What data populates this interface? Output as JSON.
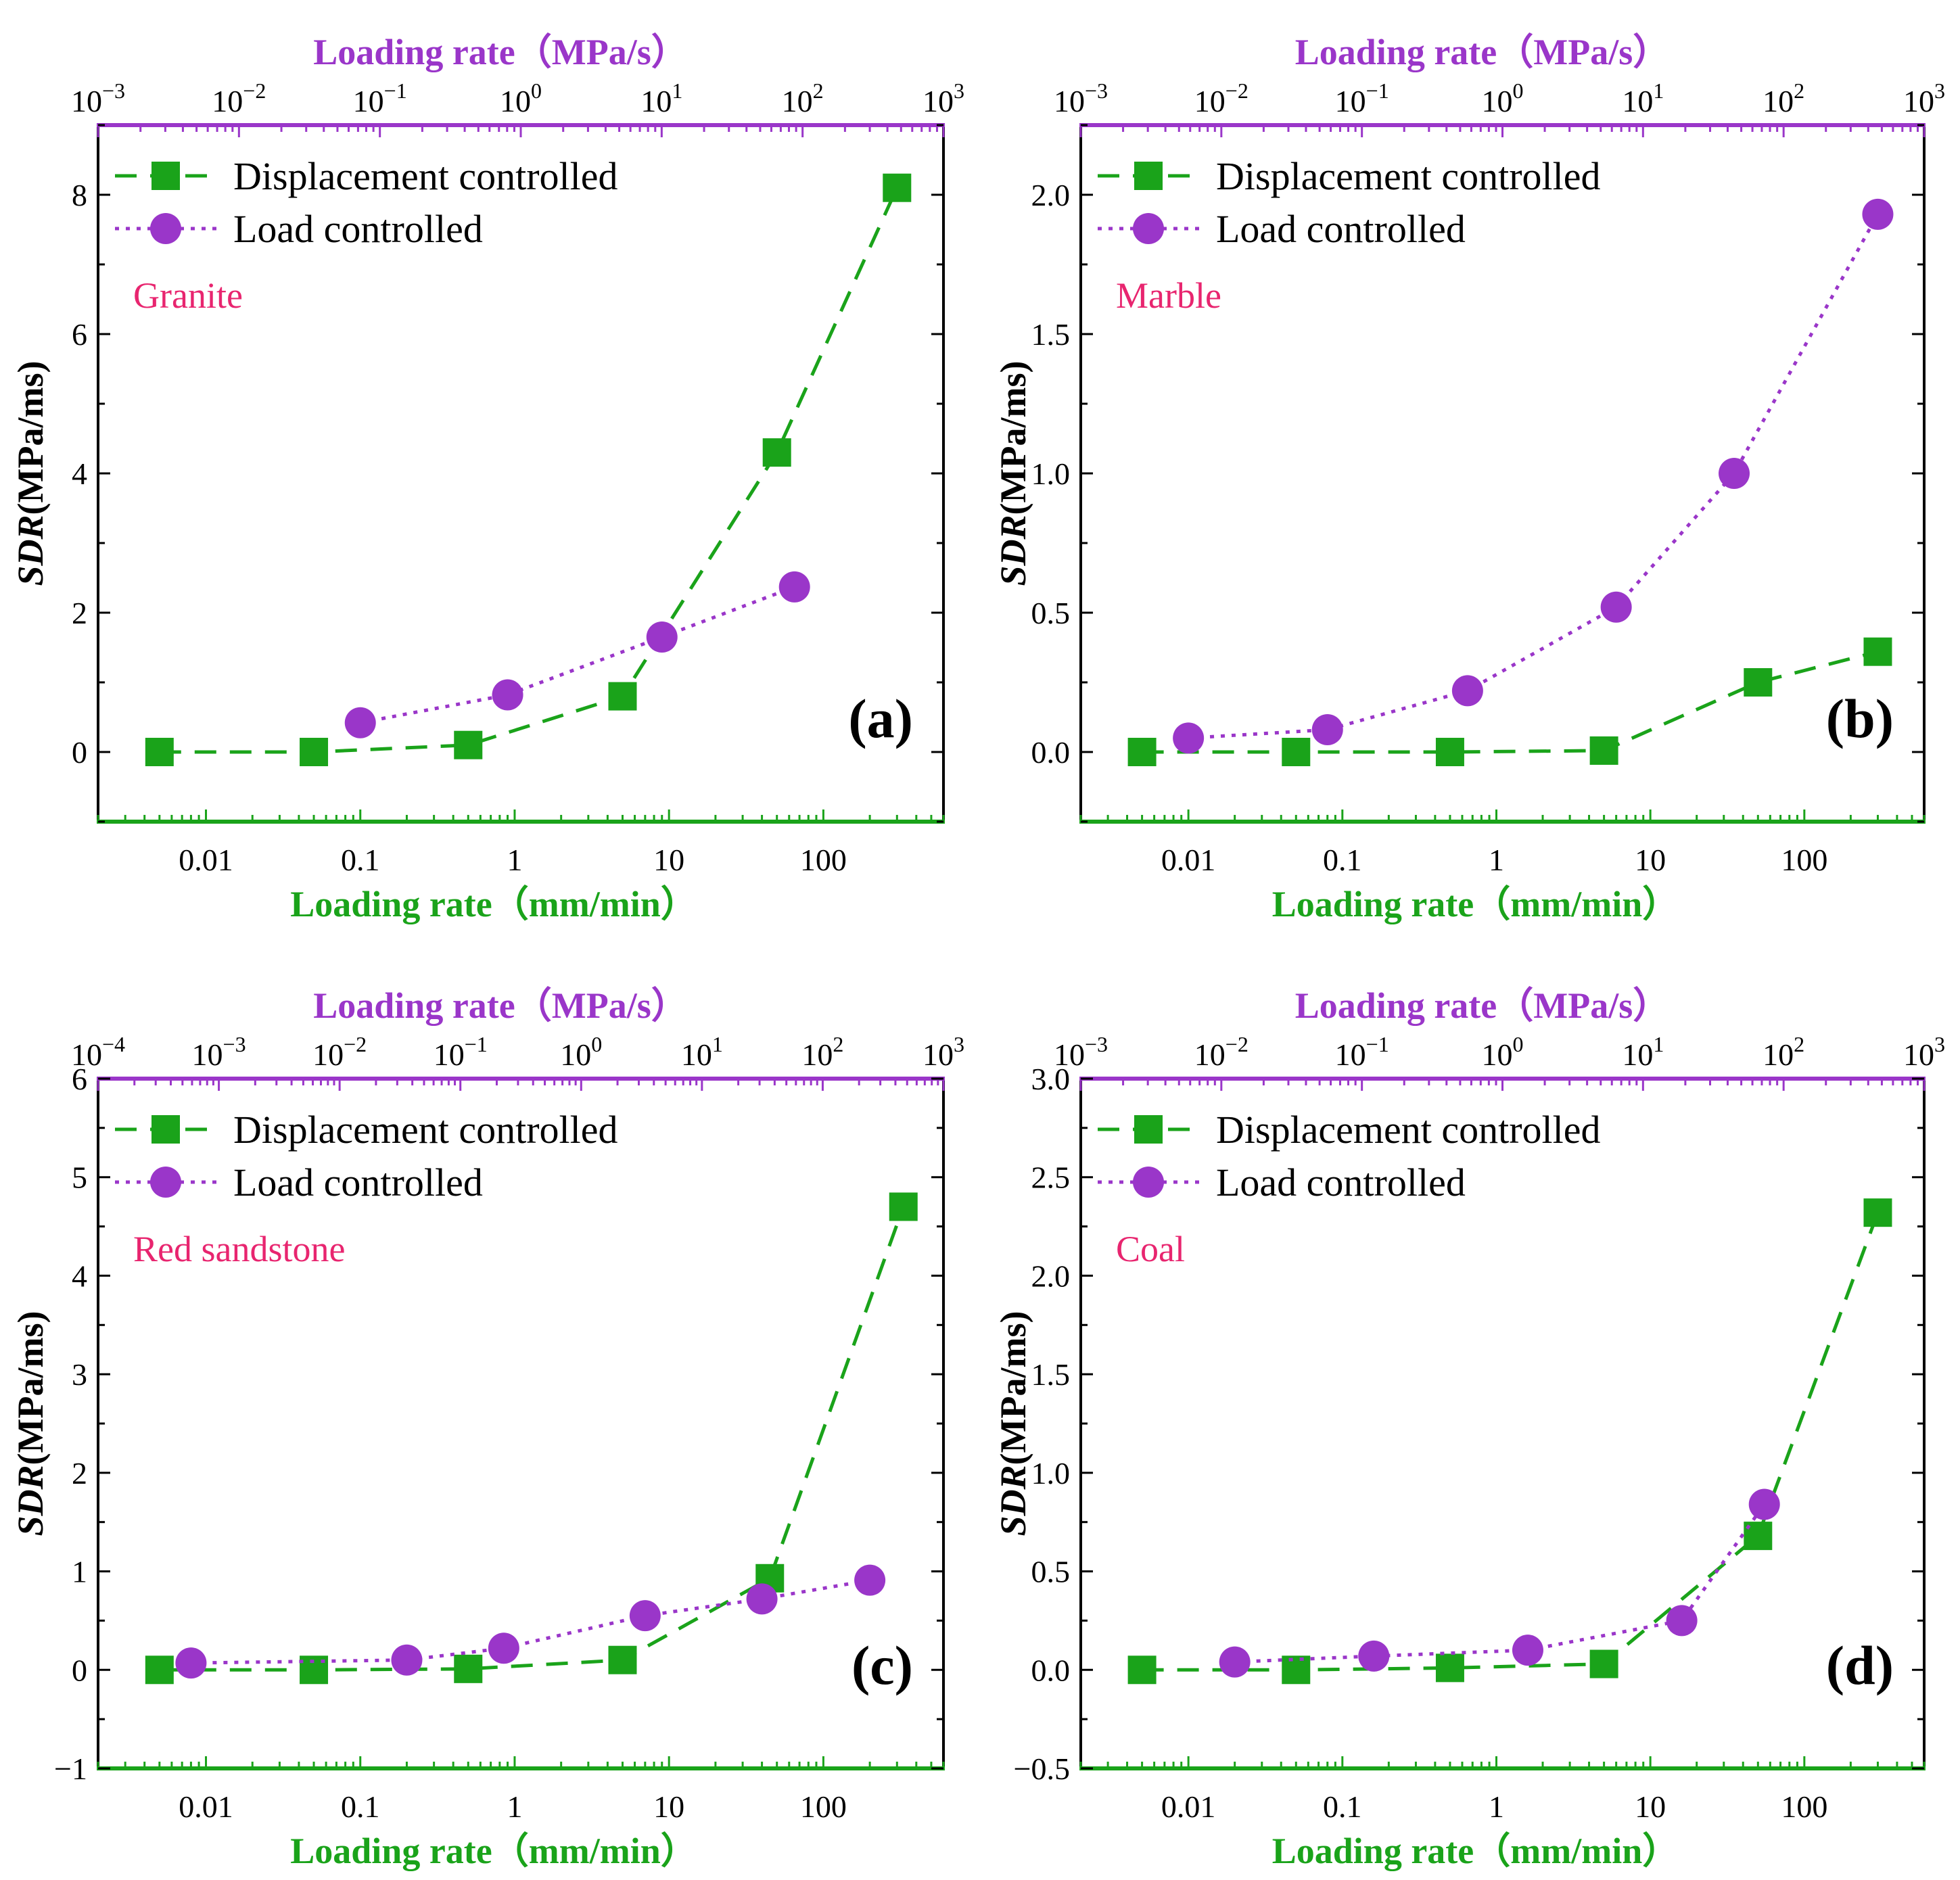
{
  "colors": {
    "green": "#1aa31a",
    "purple": "#9a36c9",
    "material": "#e8256f",
    "frame": "#000000"
  },
  "chart_data": [
    {
      "type": "line",
      "panel_label": "(a)",
      "material": "Granite",
      "xscale": "log",
      "xlabel": "Loading rate（mm/min）",
      "x2label": "Loading rate（MPa/s）",
      "ylabel_italic": "SDR",
      "ylabel_rest": "(MPa/ms)",
      "xlim": [
        0.002,
        600
      ],
      "x_ticks": [
        {
          "v": 0.01,
          "label": "0.01"
        },
        {
          "v": 0.1,
          "label": "0.1"
        },
        {
          "v": 1,
          "label": "1"
        },
        {
          "v": 10,
          "label": "10"
        },
        {
          "v": 100,
          "label": "100"
        }
      ],
      "x2lim": [
        0.001,
        1000
      ],
      "x2_ticks": [
        {
          "exp": "−3",
          "v": 0.001
        },
        {
          "exp": "−2",
          "v": 0.01
        },
        {
          "exp": "−1",
          "v": 0.1
        },
        {
          "exp": "0",
          "v": 1
        },
        {
          "exp": "1",
          "v": 10
        },
        {
          "exp": "2",
          "v": 100
        },
        {
          "exp": "3",
          "v": 1000
        }
      ],
      "ylim": [
        -1,
        9
      ],
      "y_ticks": [
        {
          "v": 0,
          "label": "0"
        },
        {
          "v": 2,
          "label": "2"
        },
        {
          "v": 4,
          "label": "4"
        },
        {
          "v": 6,
          "label": "6"
        },
        {
          "v": 8,
          "label": "8"
        }
      ],
      "series": [
        {
          "name": "Displacement controlled",
          "style": "dashed",
          "marker": "square",
          "x": [
            0.005,
            0.05,
            0.5,
            5,
            50,
            300
          ],
          "y": [
            0,
            0,
            0.1,
            0.8,
            4.3,
            8.1
          ]
        },
        {
          "name": "Load controlled",
          "style": "dotted",
          "marker": "circle",
          "x": [
            0.1,
            0.9,
            9,
            65
          ],
          "y": [
            0.42,
            0.82,
            1.65,
            2.37
          ]
        }
      ]
    },
    {
      "type": "line",
      "panel_label": "(b)",
      "material": "Marble",
      "xscale": "log",
      "xlabel": "Loading rate（mm/min）",
      "x2label": "Loading rate（MPa/s）",
      "ylabel_italic": "SDR",
      "ylabel_rest": "(MPa/ms)",
      "xlim": [
        0.002,
        600
      ],
      "x_ticks": [
        {
          "v": 0.01,
          "label": "0.01"
        },
        {
          "v": 0.1,
          "label": "0.1"
        },
        {
          "v": 1,
          "label": "1"
        },
        {
          "v": 10,
          "label": "10"
        },
        {
          "v": 100,
          "label": "100"
        }
      ],
      "x2lim": [
        0.001,
        1000
      ],
      "x2_ticks": [
        {
          "exp": "−3",
          "v": 0.001
        },
        {
          "exp": "−2",
          "v": 0.01
        },
        {
          "exp": "−1",
          "v": 0.1
        },
        {
          "exp": "0",
          "v": 1
        },
        {
          "exp": "1",
          "v": 10
        },
        {
          "exp": "2",
          "v": 100
        },
        {
          "exp": "3",
          "v": 1000
        }
      ],
      "ylim": [
        -0.25,
        2.25
      ],
      "y_ticks": [
        {
          "v": 0,
          "label": "0.0"
        },
        {
          "v": 0.5,
          "label": "0.5"
        },
        {
          "v": 1,
          "label": "1.0"
        },
        {
          "v": 1.5,
          "label": "1.5"
        },
        {
          "v": 2,
          "label": "2.0"
        }
      ],
      "series": [
        {
          "name": "Displacement controlled",
          "style": "dashed",
          "marker": "square",
          "x": [
            0.005,
            0.05,
            0.5,
            5,
            50,
            300
          ],
          "y": [
            0,
            0,
            0,
            0.005,
            0.25,
            0.36
          ]
        },
        {
          "name": "Load controlled",
          "style": "dotted",
          "marker": "circle",
          "x": [
            0.01,
            0.08,
            0.65,
            6,
            35,
            300
          ],
          "y": [
            0.05,
            0.08,
            0.22,
            0.52,
            1.0,
            1.93
          ]
        }
      ]
    },
    {
      "type": "line",
      "panel_label": "(c)",
      "material": "Red sandstone",
      "xscale": "log",
      "xlabel": "Loading rate（mm/min）",
      "x2label": "Loading rate（MPa/s）",
      "ylabel_italic": "SDR",
      "ylabel_rest": "(MPa/ms)",
      "xlim": [
        0.002,
        600
      ],
      "x_ticks": [
        {
          "v": 0.01,
          "label": "0.01"
        },
        {
          "v": 0.1,
          "label": "0.1"
        },
        {
          "v": 1,
          "label": "1"
        },
        {
          "v": 10,
          "label": "10"
        },
        {
          "v": 100,
          "label": "100"
        }
      ],
      "x2lim": [
        0.0001,
        1000
      ],
      "x2_ticks": [
        {
          "exp": "−4",
          "v": 0.0001
        },
        {
          "exp": "−3",
          "v": 0.001
        },
        {
          "exp": "−2",
          "v": 0.01
        },
        {
          "exp": "−1",
          "v": 0.1
        },
        {
          "exp": "0",
          "v": 1
        },
        {
          "exp": "1",
          "v": 10
        },
        {
          "exp": "2",
          "v": 100
        },
        {
          "exp": "3",
          "v": 1000
        }
      ],
      "ylim": [
        -1,
        6
      ],
      "y_ticks": [
        {
          "v": -1,
          "label": "−1"
        },
        {
          "v": 0,
          "label": "0"
        },
        {
          "v": 1,
          "label": "1"
        },
        {
          "v": 2,
          "label": "2"
        },
        {
          "v": 3,
          "label": "3"
        },
        {
          "v": 4,
          "label": "4"
        },
        {
          "v": 5,
          "label": "5"
        },
        {
          "v": 6,
          "label": "6"
        }
      ],
      "series": [
        {
          "name": "Displacement controlled",
          "style": "dashed",
          "marker": "square",
          "x": [
            0.005,
            0.05,
            0.5,
            5,
            45,
            330
          ],
          "y": [
            0,
            0,
            0.01,
            0.1,
            0.93,
            4.7
          ]
        },
        {
          "name": "Load controlled",
          "style": "dotted",
          "marker": "circle",
          "x": [
            0.008,
            0.2,
            0.85,
            7,
            40,
            200
          ],
          "y": [
            0.07,
            0.1,
            0.22,
            0.55,
            0.72,
            0.91
          ]
        }
      ]
    },
    {
      "type": "line",
      "panel_label": "(d)",
      "material": "Coal",
      "xscale": "log",
      "xlabel": "Loading rate（mm/min）",
      "x2label": "Loading rate（MPa/s）",
      "ylabel_italic": "SDR",
      "ylabel_rest": "(MPa/ms)",
      "xlim": [
        0.002,
        600
      ],
      "x_ticks": [
        {
          "v": 0.01,
          "label": "0.01"
        },
        {
          "v": 0.1,
          "label": "0.1"
        },
        {
          "v": 1,
          "label": "1"
        },
        {
          "v": 10,
          "label": "10"
        },
        {
          "v": 100,
          "label": "100"
        }
      ],
      "x2lim": [
        0.001,
        1000
      ],
      "x2_ticks": [
        {
          "exp": "−3",
          "v": 0.001
        },
        {
          "exp": "−2",
          "v": 0.01
        },
        {
          "exp": "−1",
          "v": 0.1
        },
        {
          "exp": "0",
          "v": 1
        },
        {
          "exp": "1",
          "v": 10
        },
        {
          "exp": "2",
          "v": 100
        },
        {
          "exp": "3",
          "v": 1000
        }
      ],
      "ylim": [
        -0.5,
        3.0
      ],
      "y_ticks": [
        {
          "v": -0.5,
          "label": "−0.5"
        },
        {
          "v": 0,
          "label": "0.0"
        },
        {
          "v": 0.5,
          "label": "0.5"
        },
        {
          "v": 1,
          "label": "1.0"
        },
        {
          "v": 1.5,
          "label": "1.5"
        },
        {
          "v": 2,
          "label": "2.0"
        },
        {
          "v": 2.5,
          "label": "2.5"
        },
        {
          "v": 3,
          "label": "3.0"
        }
      ],
      "series": [
        {
          "name": "Displacement controlled",
          "style": "dashed",
          "marker": "square",
          "x": [
            0.005,
            0.05,
            0.5,
            5,
            50,
            300
          ],
          "y": [
            0,
            0,
            0.01,
            0.03,
            0.68,
            2.32
          ]
        },
        {
          "name": "Load controlled",
          "style": "dotted",
          "marker": "circle",
          "x": [
            0.02,
            0.16,
            1.6,
            16,
            55
          ],
          "y": [
            0.04,
            0.07,
            0.1,
            0.25,
            0.84
          ]
        }
      ]
    }
  ]
}
